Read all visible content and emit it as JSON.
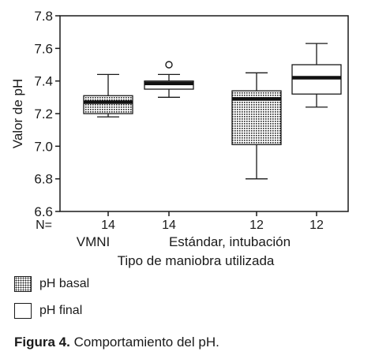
{
  "chart_data": {
    "type": "boxplot",
    "ylabel": "Valor de pH",
    "xlabel": "Tipo de maniobra utilizada",
    "ylim": [
      6.6,
      7.8
    ],
    "y_ticks": [
      "6.6",
      "6.8",
      "7.0",
      "7.2",
      "7.4",
      "7.6",
      "7.8"
    ],
    "n_label": "N=",
    "groups": [
      {
        "label": "VMNI"
      },
      {
        "label": "Estándar, intubación"
      }
    ],
    "series": [
      {
        "name": "pH basal",
        "fill": "dotted"
      },
      {
        "name": "pH final",
        "fill": "white"
      }
    ],
    "boxes": [
      {
        "group": "VMNI",
        "series": "pH basal",
        "n": "14",
        "whisker_low": 7.18,
        "q1": 7.2,
        "median": 7.27,
        "q3": 7.31,
        "whisker_high": 7.44,
        "outliers": []
      },
      {
        "group": "VMNI",
        "series": "pH final",
        "n": "14",
        "whisker_low": 7.3,
        "q1": 7.35,
        "median": 7.385,
        "q3": 7.4,
        "whisker_high": 7.44,
        "outliers": [
          7.5
        ]
      },
      {
        "group": "Estándar, intubación",
        "series": "pH basal",
        "n": "12",
        "whisker_low": 6.8,
        "q1": 7.01,
        "median": 7.29,
        "q3": 7.34,
        "whisker_high": 7.45,
        "outliers": []
      },
      {
        "group": "Estándar, intubación",
        "series": "pH final",
        "n": "12",
        "whisker_low": 7.24,
        "q1": 7.32,
        "median": 7.42,
        "q3": 7.5,
        "whisker_high": 7.63,
        "outliers": []
      }
    ]
  },
  "caption": {
    "label": "Figura 4.",
    "text": " Comportamiento del pH."
  }
}
